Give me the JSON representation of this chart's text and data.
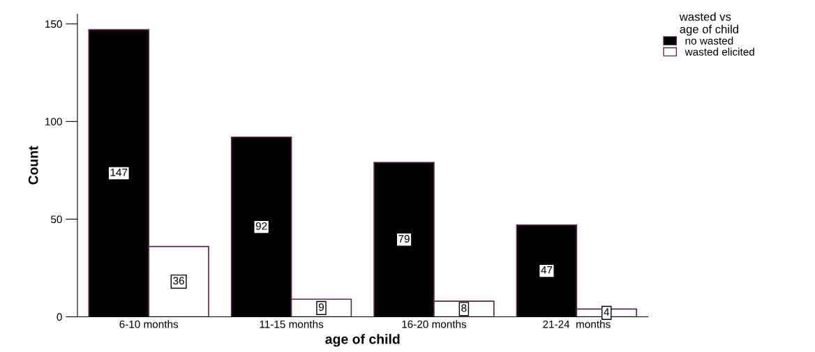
{
  "chart_data": {
    "type": "bar",
    "xlabel": "age of child",
    "ylabel": "Count",
    "legend_title": "wasted vs\nage of child",
    "categories": [
      "6-10 months",
      "11-15 months",
      "16-20 months",
      "21-24  months"
    ],
    "series": [
      {
        "name": "no wasted",
        "color": "#000000",
        "values": [
          147,
          92,
          79,
          47
        ]
      },
      {
        "name": "wasted elicited",
        "color": "#ffffff",
        "values": [
          36,
          9,
          8,
          4
        ]
      }
    ],
    "ylim": [
      0,
      155
    ],
    "yticks": [
      0,
      50,
      100,
      150
    ],
    "grid": false,
    "legend": "top right",
    "data_labels": true
  }
}
